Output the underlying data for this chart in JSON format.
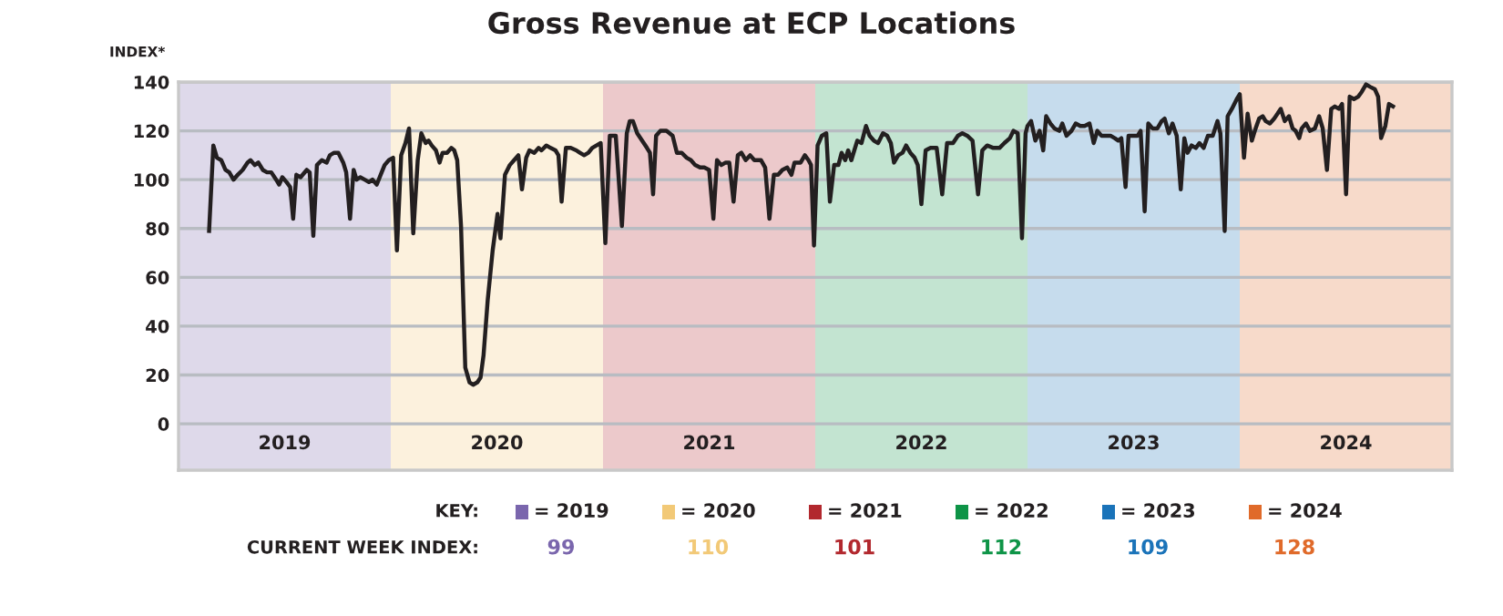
{
  "chart_data": {
    "type": "line",
    "title": "Gross Revenue at ECP Locations",
    "ylabel": "INDEX*",
    "annotations": [
      "KEY:",
      "= 2019",
      "= 2020",
      "= 2021",
      "= 2022",
      "= 2023",
      "= 2024",
      "CURRENT WEEK INDEX:",
      "99",
      "110",
      "101",
      "112",
      "109",
      "128"
    ],
    "xlim": [
      2019,
      2025
    ],
    "ylim": [
      -19,
      140
    ],
    "yticks": [
      0,
      20,
      40,
      60,
      80,
      100,
      120,
      140
    ],
    "xticks": [
      {
        "value": 2019.5,
        "label": "2019"
      },
      {
        "value": 2020.5,
        "label": "2020"
      },
      {
        "value": 2021.5,
        "label": "2021"
      },
      {
        "value": 2022.5,
        "label": "2022"
      },
      {
        "value": 2023.5,
        "label": "2023"
      },
      {
        "value": 2024.5,
        "label": "2024"
      }
    ],
    "grid": "y",
    "marker": "none",
    "line_style": "solid",
    "bands": [
      {
        "axis": "x",
        "from": 2019,
        "to": 2020,
        "color": "#7a66ad"
      },
      {
        "axis": "x",
        "from": 2020,
        "to": 2021,
        "color": "#f2c977"
      },
      {
        "axis": "x",
        "from": 2021,
        "to": 2022,
        "color": "#b2282e"
      },
      {
        "axis": "x",
        "from": 2022,
        "to": 2023,
        "color": "#0e9447"
      },
      {
        "axis": "x",
        "from": 2023,
        "to": 2024,
        "color": "#1a73b9"
      },
      {
        "axis": "x",
        "from": 2024,
        "to": 2025,
        "color": "#e06a2a"
      }
    ],
    "series": [
      {
        "color": "#231f20",
        "x": [
          2019.144,
          2019.164,
          2019.181,
          2019.201,
          2019.221,
          2019.239,
          2019.259,
          2019.279,
          2019.302,
          2019.325,
          2019.339,
          2019.359,
          2019.376,
          2019.397,
          2019.417,
          2019.437,
          2019.46,
          2019.474,
          2019.489,
          2019.509,
          2019.526,
          2019.54,
          2019.555,
          2019.575,
          2019.604,
          2019.618,
          2019.635,
          2019.652,
          2019.675,
          2019.698,
          2019.713,
          2019.733,
          2019.753,
          2019.776,
          2019.79,
          2019.808,
          2019.825,
          2019.839,
          2019.856,
          2019.877,
          2019.897,
          2019.914,
          2019.934,
          2019.957,
          2019.971,
          2019.991,
          2020.011,
          2020.029,
          2020.049,
          2020.069,
          2020.086,
          2020.106,
          2020.127,
          2020.144,
          2020.164,
          2020.178,
          2020.193,
          2020.213,
          2020.23,
          2020.244,
          2020.265,
          2020.285,
          2020.299,
          2020.313,
          2020.331,
          2020.351,
          2020.371,
          2020.388,
          2020.408,
          2020.423,
          2020.437,
          2020.457,
          2020.48,
          2020.503,
          2020.517,
          2020.538,
          2020.561,
          2020.581,
          2020.601,
          2020.618,
          2020.638,
          2020.653,
          2020.676,
          2020.696,
          2020.71,
          2020.733,
          2020.753,
          2020.776,
          2020.79,
          2020.805,
          2020.825,
          2020.848,
          2020.874,
          2020.891,
          2020.911,
          2020.931,
          2020.949,
          2020.969,
          2020.989,
          2021.011,
          2021.032,
          2021.06,
          2021.089,
          2021.112,
          2021.126,
          2021.141,
          2021.161,
          2021.184,
          2021.207,
          2021.221,
          2021.236,
          2021.25,
          2021.27,
          2021.299,
          2021.328,
          2021.348,
          2021.371,
          2021.394,
          2021.414,
          2021.434,
          2021.457,
          2021.477,
          2021.5,
          2021.52,
          2021.537,
          2021.557,
          2021.578,
          2021.595,
          2021.615,
          2021.635,
          2021.652,
          2021.672,
          2021.693,
          2021.713,
          2021.744,
          2021.764,
          2021.784,
          2021.805,
          2021.825,
          2021.845,
          2021.868,
          2021.888,
          2021.902,
          2021.931,
          2021.951,
          2021.968,
          2021.98,
          2021.994,
          2022.011,
          2022.031,
          2022.052,
          2022.069,
          2022.089,
          2022.109,
          2022.124,
          2022.141,
          2022.155,
          2022.17,
          2022.184,
          2022.198,
          2022.218,
          2022.239,
          2022.256,
          2022.276,
          2022.296,
          2022.319,
          2022.339,
          2022.356,
          2022.371,
          2022.391,
          2022.411,
          2022.428,
          2022.448,
          2022.468,
          2022.483,
          2022.5,
          2022.52,
          2022.543,
          2022.572,
          2022.598,
          2022.621,
          2022.649,
          2022.672,
          2022.693,
          2022.716,
          2022.741,
          2022.767,
          2022.787,
          2022.81,
          2022.839,
          2022.868,
          2022.891,
          2022.917,
          2022.934,
          2022.954,
          2022.974,
          2022.991,
          2023.0,
          2023.017,
          2023.037,
          2023.057,
          2023.074,
          2023.088,
          2023.108,
          2023.127,
          2023.15,
          2023.164,
          2023.184,
          2023.207,
          2023.227,
          2023.249,
          2023.269,
          2023.292,
          2023.312,
          2023.329,
          2023.348,
          2023.371,
          2023.391,
          2023.411,
          2023.428,
          2023.442,
          2023.462,
          2023.476,
          2023.499,
          2023.519,
          2023.533,
          2023.552,
          2023.569,
          2023.589,
          2023.612,
          2023.632,
          2023.646,
          2023.666,
          2023.683,
          2023.703,
          2023.722,
          2023.739,
          2023.754,
          2023.773,
          2023.793,
          2023.81,
          2023.83,
          2023.85,
          2023.873,
          2023.895,
          2023.909,
          2023.929,
          2023.943,
          2023.963,
          2023.986,
          2024.0,
          2024.02,
          2024.037,
          2024.057,
          2024.071,
          2024.091,
          2024.108,
          2024.122,
          2024.142,
          2024.162,
          2024.178,
          2024.193,
          2024.212,
          2024.232,
          2024.249,
          2024.263,
          2024.28,
          2024.292,
          2024.312,
          2024.331,
          2024.354,
          2024.374,
          2024.391,
          2024.411,
          2024.431,
          2024.448,
          2024.467,
          2024.482,
          2024.501,
          2024.518,
          2024.538,
          2024.558,
          2024.575,
          2024.595,
          2024.615,
          2024.637,
          2024.652,
          2024.666,
          2024.686,
          2024.703,
          2024.722
        ],
        "values": [
          79,
          114,
          109,
          108,
          104,
          103,
          100,
          102,
          104,
          107,
          108,
          106,
          107,
          104,
          103,
          103,
          100,
          98,
          101,
          99,
          97,
          84,
          102,
          101,
          104,
          103,
          77,
          106,
          108,
          107,
          110,
          111,
          111,
          107,
          103,
          84,
          104,
          100,
          101,
          100,
          99,
          100,
          98,
          103,
          106,
          108,
          109,
          71,
          110,
          115,
          121,
          78,
          108,
          119,
          115,
          116,
          114,
          112,
          107,
          111,
          111,
          113,
          112,
          108,
          81,
          23,
          17,
          16,
          17,
          19,
          28,
          51,
          71,
          86,
          76,
          102,
          106,
          108,
          110,
          96,
          109,
          112,
          111,
          113,
          112,
          114,
          113,
          112,
          110,
          91,
          113,
          113,
          112,
          111,
          110,
          111,
          113,
          114,
          115,
          74,
          118,
          118,
          81,
          119,
          124,
          124,
          119,
          116,
          113,
          111,
          94,
          118,
          120,
          120,
          118,
          111,
          111,
          109,
          108,
          106,
          105,
          105,
          104,
          84,
          108,
          106,
          107,
          107,
          91,
          110,
          111,
          108,
          110,
          108,
          108,
          105,
          84,
          102,
          102,
          104,
          105,
          102,
          107,
          107,
          110,
          108,
          106,
          73,
          114,
          118,
          119,
          91,
          106,
          106,
          111,
          108,
          112,
          108,
          112,
          116,
          115,
          122,
          118,
          116,
          115,
          119,
          118,
          115,
          107,
          110,
          111,
          114,
          111,
          109,
          106,
          90,
          112,
          113,
          113,
          94,
          115,
          115,
          118,
          119,
          118,
          116,
          94,
          112,
          114,
          113,
          113,
          115,
          117,
          120,
          119,
          76,
          119,
          122,
          124,
          116,
          120,
          112,
          126,
          123,
          121,
          120,
          123,
          118,
          120,
          123,
          122,
          122,
          123,
          115,
          120,
          118,
          118,
          118,
          117,
          116,
          117,
          97,
          118,
          118,
          118,
          120,
          87,
          123,
          121,
          121,
          124,
          125,
          119,
          123,
          118,
          96,
          117,
          111,
          114,
          113,
          115,
          113,
          118,
          118,
          124,
          119,
          79,
          126,
          129,
          133,
          135,
          109,
          127,
          116,
          120,
          125,
          126,
          124,
          123,
          125,
          127,
          129,
          124,
          126,
          121,
          120,
          117,
          121,
          123,
          120,
          121,
          126,
          121,
          104,
          129,
          130,
          129,
          131,
          94,
          134,
          133,
          134,
          136,
          139,
          138,
          137,
          134,
          117,
          122,
          131,
          130
        ]
      }
    ]
  }
}
